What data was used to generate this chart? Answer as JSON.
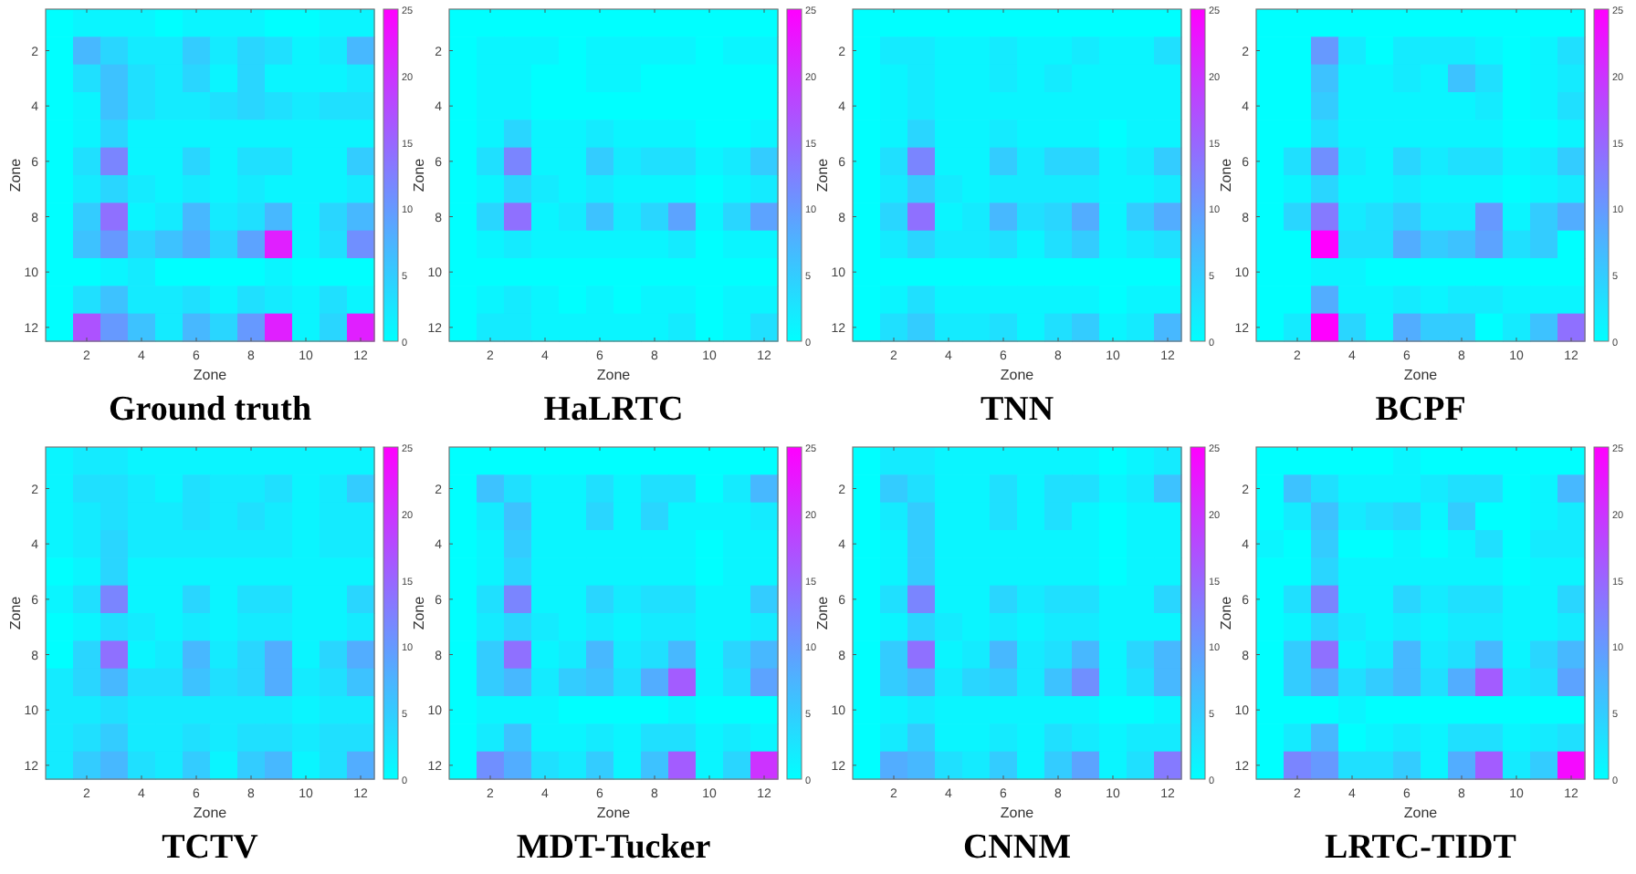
{
  "chart_data": [
    {
      "type": "heatmap",
      "title": "Ground truth",
      "xlabel": "Zone",
      "ylabel": "Zone",
      "categories": [
        null,
        "2",
        null,
        "4",
        null,
        "6",
        null,
        "8",
        null,
        "10",
        null,
        "12"
      ],
      "y_categories": [
        null,
        "2",
        null,
        "4",
        null,
        "6",
        null,
        "8",
        null,
        "10",
        null,
        "12"
      ],
      "clim": [
        0,
        25
      ],
      "cticks": [
        0,
        5,
        10,
        15,
        20,
        25
      ],
      "cells": [
        [
          0,
          1,
          1,
          1,
          0,
          1,
          1,
          1,
          0,
          0,
          1,
          1
        ],
        [
          0,
          7,
          4,
          2,
          2,
          5,
          2,
          4,
          3,
          1,
          2,
          7
        ],
        [
          0,
          3,
          6,
          3,
          2,
          4,
          1,
          4,
          1,
          1,
          1,
          2
        ],
        [
          0,
          1,
          6,
          3,
          2,
          2,
          3,
          4,
          3,
          2,
          3,
          3
        ],
        [
          0,
          1,
          4,
          1,
          1,
          1,
          1,
          1,
          1,
          1,
          1,
          1
        ],
        [
          0,
          3,
          12,
          1,
          1,
          4,
          1,
          3,
          3,
          1,
          1,
          5
        ],
        [
          0,
          2,
          4,
          2,
          1,
          2,
          1,
          2,
          1,
          1,
          1,
          2
        ],
        [
          0,
          5,
          14,
          1,
          2,
          7,
          2,
          3,
          7,
          1,
          4,
          7
        ],
        [
          0,
          6,
          10,
          4,
          6,
          8,
          4,
          9,
          22,
          1,
          3,
          11
        ],
        [
          0,
          0,
          1,
          2,
          0,
          0,
          0,
          0,
          1,
          0,
          0,
          0
        ],
        [
          0,
          3,
          6,
          2,
          2,
          3,
          1,
          3,
          2,
          1,
          3,
          1
        ],
        [
          0,
          17,
          10,
          6,
          2,
          7,
          4,
          10,
          22,
          1,
          4,
          22
        ]
      ]
    },
    {
      "type": "heatmap",
      "title": "HaLRTC",
      "xlabel": "Zone",
      "ylabel": "Zone",
      "categories": [
        null,
        "2",
        null,
        "4",
        null,
        "6",
        null,
        "8",
        null,
        "10",
        null,
        "12"
      ],
      "y_categories": [
        null,
        "2",
        null,
        "4",
        null,
        "6",
        null,
        "8",
        null,
        "10",
        null,
        "12"
      ],
      "clim": [
        0,
        25
      ],
      "cticks": [
        0,
        5,
        10,
        15,
        20,
        25
      ],
      "cells": [
        [
          0,
          0,
          0,
          0,
          0,
          0,
          0,
          0,
          0,
          0,
          0,
          0
        ],
        [
          0,
          1,
          1,
          1,
          0,
          1,
          1,
          1,
          1,
          0,
          1,
          1
        ],
        [
          0,
          1,
          1,
          0,
          0,
          1,
          1,
          0,
          0,
          0,
          0,
          0
        ],
        [
          0,
          1,
          1,
          0,
          0,
          0,
          0,
          0,
          0,
          0,
          0,
          0
        ],
        [
          0,
          1,
          4,
          1,
          1,
          2,
          1,
          1,
          1,
          0,
          0,
          1
        ],
        [
          0,
          3,
          12,
          1,
          1,
          5,
          2,
          3,
          3,
          1,
          2,
          5
        ],
        [
          0,
          1,
          4,
          2,
          1,
          2,
          1,
          1,
          1,
          0,
          1,
          2
        ],
        [
          0,
          4,
          14,
          1,
          2,
          6,
          2,
          4,
          9,
          1,
          4,
          9
        ],
        [
          0,
          1,
          2,
          1,
          1,
          1,
          1,
          1,
          2,
          0,
          1,
          1
        ],
        [
          0,
          0,
          0,
          0,
          0,
          0,
          0,
          0,
          0,
          0,
          0,
          0
        ],
        [
          0,
          1,
          2,
          1,
          0,
          1,
          0,
          1,
          1,
          0,
          1,
          1
        ],
        [
          0,
          2,
          2,
          1,
          1,
          1,
          1,
          1,
          2,
          0,
          1,
          3
        ]
      ]
    },
    {
      "type": "heatmap",
      "title": "TNN",
      "xlabel": "Zone",
      "ylabel": "Zone",
      "categories": [
        null,
        "2",
        null,
        "4",
        null,
        "6",
        null,
        "8",
        null,
        "10",
        null,
        "12"
      ],
      "y_categories": [
        null,
        "2",
        null,
        "4",
        null,
        "6",
        null,
        "8",
        null,
        "10",
        null,
        "12"
      ],
      "clim": [
        0,
        25
      ],
      "cticks": [
        0,
        5,
        10,
        15,
        20,
        25
      ],
      "cells": [
        [
          0,
          0,
          0,
          0,
          0,
          0,
          0,
          0,
          0,
          0,
          0,
          0
        ],
        [
          0,
          2,
          2,
          1,
          1,
          2,
          1,
          1,
          2,
          1,
          1,
          3
        ],
        [
          0,
          1,
          2,
          1,
          1,
          2,
          1,
          2,
          1,
          1,
          1,
          1
        ],
        [
          0,
          1,
          2,
          1,
          1,
          1,
          1,
          1,
          1,
          1,
          1,
          1
        ],
        [
          0,
          1,
          4,
          1,
          1,
          2,
          1,
          1,
          1,
          0,
          1,
          1
        ],
        [
          0,
          3,
          12,
          1,
          1,
          5,
          2,
          4,
          4,
          1,
          2,
          5
        ],
        [
          0,
          2,
          5,
          2,
          1,
          2,
          2,
          2,
          2,
          1,
          1,
          2
        ],
        [
          0,
          4,
          14,
          1,
          2,
          7,
          3,
          4,
          8,
          1,
          5,
          8
        ],
        [
          0,
          2,
          4,
          2,
          2,
          3,
          1,
          3,
          5,
          1,
          2,
          3
        ],
        [
          0,
          0,
          0,
          0,
          0,
          0,
          0,
          0,
          0,
          0,
          0,
          0
        ],
        [
          0,
          1,
          3,
          1,
          1,
          1,
          1,
          1,
          1,
          0,
          1,
          1
        ],
        [
          0,
          3,
          5,
          2,
          2,
          3,
          1,
          3,
          5,
          1,
          2,
          7
        ]
      ]
    },
    {
      "type": "heatmap",
      "title": "BCPF",
      "xlabel": "Zone",
      "ylabel": "Zone",
      "categories": [
        null,
        "2",
        null,
        "4",
        null,
        "6",
        null,
        "8",
        null,
        "10",
        null,
        "12"
      ],
      "y_categories": [
        null,
        "2",
        null,
        "4",
        null,
        "6",
        null,
        "8",
        null,
        "10",
        null,
        "12"
      ],
      "clim": [
        0,
        25
      ],
      "cticks": [
        0,
        5,
        10,
        15,
        20,
        25
      ],
      "cells": [
        [
          0,
          0,
          0,
          0,
          0,
          0,
          0,
          0,
          0,
          0,
          0,
          0
        ],
        [
          0,
          0,
          10,
          2,
          0,
          2,
          2,
          2,
          1,
          0,
          1,
          3
        ],
        [
          0,
          0,
          6,
          1,
          1,
          2,
          1,
          6,
          3,
          0,
          1,
          2
        ],
        [
          0,
          0,
          5,
          1,
          1,
          1,
          1,
          1,
          2,
          0,
          1,
          3
        ],
        [
          0,
          0,
          3,
          1,
          1,
          1,
          1,
          1,
          1,
          0,
          0,
          1
        ],
        [
          0,
          3,
          11,
          2,
          1,
          4,
          2,
          3,
          3,
          1,
          2,
          5
        ],
        [
          0,
          1,
          4,
          1,
          1,
          2,
          1,
          1,
          1,
          0,
          1,
          2
        ],
        [
          0,
          4,
          13,
          2,
          3,
          5,
          2,
          2,
          10,
          1,
          5,
          8
        ],
        [
          0,
          0,
          25,
          3,
          3,
          8,
          5,
          6,
          9,
          3,
          5,
          0
        ],
        [
          0,
          0,
          1,
          1,
          0,
          0,
          0,
          0,
          0,
          0,
          0,
          0
        ],
        [
          0,
          0,
          8,
          1,
          1,
          2,
          1,
          2,
          2,
          1,
          1,
          1
        ],
        [
          0,
          2,
          25,
          4,
          1,
          8,
          5,
          5,
          0,
          2,
          6,
          14
        ]
      ]
    },
    {
      "type": "heatmap",
      "title": "TCTV",
      "xlabel": "Zone",
      "ylabel": "Zone",
      "categories": [
        null,
        "2",
        null,
        "4",
        null,
        "6",
        null,
        "8",
        null,
        "10",
        null,
        "12"
      ],
      "y_categories": [
        null,
        "2",
        null,
        "4",
        null,
        "6",
        null,
        "8",
        null,
        "10",
        null,
        "12"
      ],
      "clim": [
        0,
        25
      ],
      "cticks": [
        0,
        5,
        10,
        15,
        20,
        25
      ],
      "cells": [
        [
          1,
          2,
          2,
          1,
          1,
          1,
          1,
          1,
          1,
          1,
          1,
          1
        ],
        [
          1,
          3,
          3,
          2,
          1,
          3,
          2,
          2,
          3,
          1,
          2,
          5
        ],
        [
          1,
          2,
          3,
          2,
          2,
          3,
          2,
          3,
          2,
          1,
          2,
          2
        ],
        [
          1,
          2,
          4,
          2,
          2,
          2,
          2,
          2,
          2,
          1,
          2,
          2
        ],
        [
          0,
          1,
          4,
          1,
          1,
          1,
          1,
          1,
          1,
          1,
          1,
          1
        ],
        [
          1,
          3,
          12,
          1,
          1,
          4,
          1,
          3,
          3,
          1,
          1,
          4
        ],
        [
          0,
          1,
          3,
          2,
          1,
          2,
          1,
          2,
          2,
          1,
          1,
          2
        ],
        [
          0,
          4,
          14,
          1,
          2,
          7,
          2,
          4,
          8,
          1,
          4,
          8
        ],
        [
          2,
          4,
          7,
          3,
          3,
          6,
          3,
          4,
          8,
          2,
          3,
          6
        ],
        [
          2,
          2,
          3,
          2,
          2,
          2,
          2,
          2,
          2,
          1,
          2,
          2
        ],
        [
          2,
          3,
          5,
          2,
          2,
          3,
          2,
          3,
          3,
          2,
          3,
          3
        ],
        [
          2,
          5,
          7,
          3,
          2,
          5,
          1,
          5,
          7,
          1,
          3,
          8
        ]
      ]
    },
    {
      "type": "heatmap",
      "title": "MDT-Tucker",
      "xlabel": "Zone",
      "ylabel": "Zone",
      "categories": [
        null,
        "2",
        null,
        "4",
        null,
        "6",
        null,
        "8",
        null,
        "10",
        null,
        "12"
      ],
      "y_categories": [
        null,
        "2",
        null,
        "4",
        null,
        "6",
        null,
        "8",
        null,
        "10",
        null,
        "12"
      ],
      "clim": [
        0,
        25
      ],
      "cticks": [
        0,
        5,
        10,
        15,
        20,
        25
      ],
      "cells": [
        [
          0,
          0,
          0,
          0,
          0,
          0,
          0,
          0,
          0,
          0,
          0,
          0
        ],
        [
          0,
          6,
          3,
          1,
          1,
          3,
          1,
          3,
          3,
          0,
          2,
          7
        ],
        [
          0,
          2,
          6,
          1,
          1,
          4,
          1,
          4,
          1,
          1,
          1,
          2
        ],
        [
          0,
          1,
          5,
          1,
          1,
          1,
          1,
          1,
          1,
          0,
          1,
          1
        ],
        [
          0,
          1,
          4,
          1,
          1,
          1,
          1,
          1,
          1,
          0,
          1,
          1
        ],
        [
          0,
          3,
          12,
          1,
          1,
          4,
          2,
          3,
          3,
          1,
          1,
          5
        ],
        [
          0,
          2,
          4,
          2,
          1,
          2,
          1,
          2,
          2,
          1,
          1,
          2
        ],
        [
          0,
          5,
          14,
          1,
          2,
          7,
          2,
          3,
          7,
          1,
          4,
          7
        ],
        [
          0,
          5,
          7,
          2,
          5,
          6,
          3,
          8,
          16,
          1,
          3,
          9
        ],
        [
          0,
          1,
          1,
          1,
          0,
          0,
          0,
          0,
          1,
          0,
          0,
          0
        ],
        [
          0,
          2,
          6,
          1,
          1,
          2,
          1,
          3,
          3,
          1,
          2,
          1
        ],
        [
          0,
          11,
          8,
          3,
          2,
          5,
          1,
          6,
          16,
          1,
          4,
          20
        ]
      ]
    },
    {
      "type": "heatmap",
      "title": "CNNM",
      "xlabel": "Zone",
      "ylabel": "Zone",
      "categories": [
        null,
        "2",
        null,
        "4",
        null,
        "6",
        null,
        "8",
        null,
        "10",
        null,
        "12"
      ],
      "y_categories": [
        null,
        "2",
        null,
        "4",
        null,
        "6",
        null,
        "8",
        null,
        "10",
        null,
        "12"
      ],
      "clim": [
        0,
        25
      ],
      "cticks": [
        0,
        5,
        10,
        15,
        20,
        25
      ],
      "cells": [
        [
          0,
          2,
          2,
          1,
          1,
          1,
          1,
          1,
          1,
          0,
          1,
          2
        ],
        [
          0,
          5,
          3,
          1,
          1,
          3,
          1,
          3,
          3,
          1,
          2,
          6
        ],
        [
          0,
          2,
          5,
          1,
          1,
          3,
          1,
          3,
          1,
          0,
          1,
          1
        ],
        [
          0,
          1,
          5,
          1,
          1,
          1,
          1,
          1,
          1,
          0,
          1,
          1
        ],
        [
          0,
          1,
          5,
          1,
          1,
          1,
          1,
          1,
          1,
          0,
          1,
          1
        ],
        [
          0,
          3,
          12,
          1,
          1,
          4,
          2,
          3,
          3,
          1,
          1,
          4
        ],
        [
          0,
          1,
          4,
          2,
          1,
          2,
          1,
          2,
          2,
          1,
          1,
          1
        ],
        [
          0,
          5,
          14,
          1,
          2,
          7,
          2,
          3,
          7,
          1,
          4,
          7
        ],
        [
          0,
          5,
          7,
          2,
          4,
          5,
          2,
          6,
          11,
          1,
          3,
          7
        ],
        [
          0,
          1,
          2,
          1,
          1,
          1,
          1,
          1,
          1,
          0,
          0,
          1
        ],
        [
          0,
          2,
          5,
          1,
          1,
          2,
          1,
          3,
          2,
          1,
          2,
          2
        ],
        [
          0,
          8,
          7,
          3,
          2,
          5,
          1,
          5,
          9,
          1,
          3,
          13
        ]
      ]
    },
    {
      "type": "heatmap",
      "title": "LRTC-TIDT",
      "xlabel": "Zone",
      "ylabel": "Zone",
      "categories": [
        null,
        "2",
        null,
        "4",
        null,
        "6",
        null,
        "8",
        null,
        "10",
        null,
        "12"
      ],
      "y_categories": [
        null,
        "2",
        null,
        "4",
        null,
        "6",
        null,
        "8",
        null,
        "10",
        null,
        "12"
      ],
      "clim": [
        0,
        25
      ],
      "cticks": [
        0,
        5,
        10,
        15,
        20,
        25
      ],
      "cells": [
        [
          0,
          0,
          0,
          0,
          0,
          1,
          0,
          0,
          0,
          0,
          0,
          0
        ],
        [
          0,
          6,
          3,
          1,
          1,
          1,
          2,
          3,
          3,
          0,
          1,
          7
        ],
        [
          0,
          2,
          6,
          2,
          3,
          4,
          1,
          5,
          0,
          0,
          1,
          2
        ],
        [
          1,
          0,
          5,
          0,
          0,
          1,
          0,
          1,
          3,
          0,
          2,
          2
        ],
        [
          0,
          0,
          4,
          1,
          1,
          1,
          1,
          1,
          1,
          0,
          1,
          1
        ],
        [
          0,
          3,
          12,
          1,
          1,
          4,
          2,
          3,
          3,
          1,
          1,
          4
        ],
        [
          0,
          1,
          4,
          2,
          1,
          2,
          1,
          2,
          2,
          1,
          1,
          2
        ],
        [
          0,
          5,
          14,
          1,
          2,
          7,
          2,
          3,
          7,
          1,
          4,
          7
        ],
        [
          0,
          5,
          8,
          3,
          5,
          7,
          3,
          8,
          16,
          2,
          3,
          9
        ],
        [
          0,
          0,
          0,
          1,
          0,
          0,
          0,
          0,
          0,
          0,
          0,
          0
        ],
        [
          0,
          2,
          7,
          0,
          1,
          2,
          1,
          3,
          3,
          1,
          2,
          3
        ],
        [
          0,
          12,
          10,
          3,
          3,
          5,
          1,
          8,
          16,
          2,
          5,
          24
        ]
      ]
    }
  ]
}
